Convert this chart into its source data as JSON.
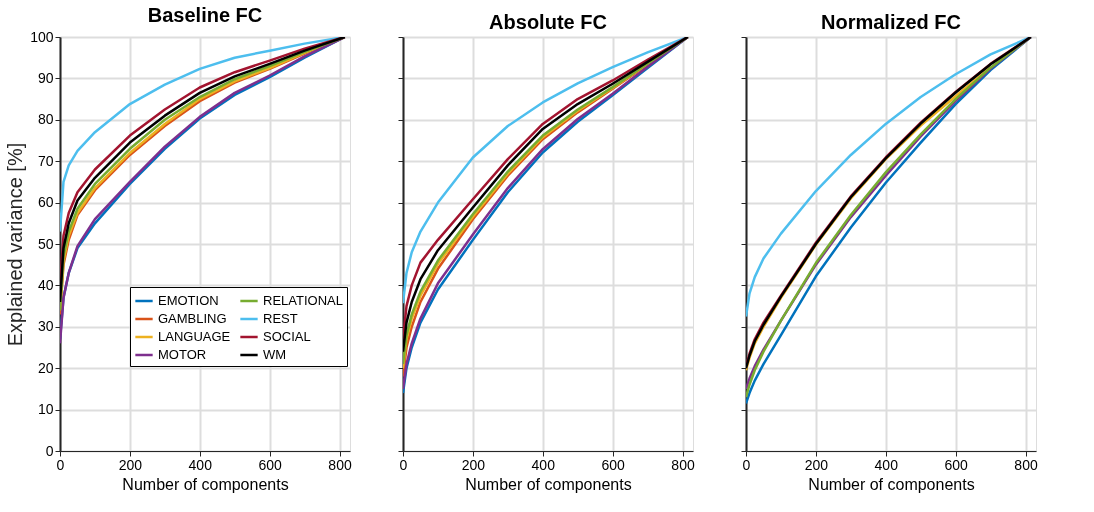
{
  "chart_data": [
    {
      "type": "line",
      "title": "Baseline FC",
      "xlabel": "Number of components",
      "ylabel": "Explained variance [%]",
      "x": [
        0,
        10,
        25,
        50,
        100,
        200,
        300,
        400,
        500,
        600,
        700,
        815
      ],
      "xlim": [
        0,
        830
      ],
      "xticks": [
        0,
        200,
        400,
        600,
        800
      ],
      "ylim": [
        0,
        100
      ],
      "yticks": [
        0,
        10,
        20,
        30,
        40,
        50,
        60,
        70,
        80,
        90,
        100
      ],
      "grid": true,
      "legend": "bottom right",
      "line_style": "solid",
      "series": [
        {
          "name": "EMOTION",
          "color": "#0072bd",
          "values": [
            27,
            37,
            43,
            49,
            55,
            64.5,
            73,
            80.3,
            86,
            90.3,
            95,
            100
          ]
        },
        {
          "name": "GAMBLING",
          "color": "#d95319",
          "values": [
            33,
            45,
            51,
            57,
            63,
            71.5,
            78.5,
            84.5,
            89,
            92.3,
            96,
            100
          ]
        },
        {
          "name": "LANGUAGE",
          "color": "#edb120",
          "values": [
            34,
            46,
            52,
            57.5,
            63.5,
            72,
            79,
            85,
            89.3,
            92.5,
            96.2,
            100
          ]
        },
        {
          "name": "MOTOR",
          "color": "#7e2f8e",
          "values": [
            26,
            37,
            43,
            49.5,
            56,
            65,
            73.5,
            80.7,
            86.5,
            90.7,
            95.3,
            100
          ]
        },
        {
          "name": "RELATIONAL",
          "color": "#77ac30",
          "values": [
            34,
            47,
            53,
            58.5,
            64.5,
            73,
            80,
            85.5,
            89.8,
            93,
            96.4,
            100
          ]
        },
        {
          "name": "REST",
          "color": "#4dbeee",
          "values": [
            53,
            65,
            69,
            72.5,
            77,
            83.8,
            88.5,
            92.3,
            95,
            96.7,
            98.4,
            100
          ]
        },
        {
          "name": "SOCIAL",
          "color": "#a2142f",
          "values": [
            40,
            52,
            57.5,
            62.5,
            68,
            76.2,
            82.5,
            87.8,
            91.5,
            94.3,
            97.2,
            100
          ]
        },
        {
          "name": "WM",
          "color": "#000000",
          "values": [
            36,
            49,
            55,
            60.5,
            66,
            74.5,
            81,
            86.5,
            90.5,
            93.5,
            96.7,
            100
          ]
        }
      ]
    },
    {
      "type": "line",
      "title": "Absolute FC",
      "xlabel": "Number of components",
      "x": [
        0,
        10,
        25,
        50,
        100,
        200,
        300,
        400,
        500,
        600,
        700,
        815
      ],
      "xlim": [
        0,
        830
      ],
      "xticks": [
        0,
        200,
        400,
        600,
        800
      ],
      "ylim": [
        0,
        100
      ],
      "yticks": [
        0,
        10,
        20,
        30,
        40,
        50,
        60,
        70,
        80,
        90,
        100
      ],
      "tick_labels": "x",
      "grid": true,
      "line_style": "solid",
      "series": [
        {
          "color": "#0072bd",
          "values": [
            14,
            20,
            25,
            31,
            39,
            51,
            62.5,
            72.1,
            79.5,
            85.9,
            92.5,
            100
          ]
        },
        {
          "color": "#d95319",
          "values": [
            18,
            25,
            30,
            36,
            44,
            56,
            66.5,
            75.3,
            81.8,
            87.5,
            93.3,
            100
          ]
        },
        {
          "color": "#edb120",
          "values": [
            20,
            27,
            32,
            37.5,
            45.2,
            56.6,
            67,
            75.8,
            82.2,
            87.7,
            93.5,
            100
          ]
        },
        {
          "color": "#7e2f8e",
          "values": [
            15,
            21,
            26,
            32,
            40.5,
            52.3,
            63.5,
            72.9,
            80.2,
            86.3,
            92.8,
            100
          ]
        },
        {
          "color": "#77ac30",
          "values": [
            21,
            28,
            33,
            38.5,
            46,
            57.2,
            67.5,
            76.2,
            82.5,
            87.9,
            93.6,
            100
          ]
        },
        {
          "color": "#4dbeee",
          "values": [
            35.7,
            43,
            48,
            53,
            60,
            70.9,
            78.5,
            84.2,
            88.8,
            92.7,
            96.3,
            100
          ]
        },
        {
          "color": "#a2142f",
          "values": [
            27,
            35,
            40,
            45.5,
            51,
            60.8,
            70.5,
            79,
            85,
            89.5,
            94.5,
            100
          ]
        },
        {
          "color": "#000000",
          "values": [
            24,
            31,
            36,
            41.5,
            48.5,
            58.8,
            69,
            77.8,
            83.8,
            88.7,
            94,
            100
          ]
        }
      ]
    },
    {
      "type": "line",
      "title": "Normalized FC",
      "xlabel": "Number of components",
      "x": [
        0,
        10,
        25,
        50,
        100,
        200,
        300,
        400,
        500,
        600,
        700,
        815
      ],
      "xlim": [
        0,
        830
      ],
      "xticks": [
        0,
        200,
        400,
        600,
        800
      ],
      "ylim": [
        0,
        100
      ],
      "yticks": [
        0,
        10,
        20,
        30,
        40,
        50,
        60,
        70,
        80,
        90,
        100
      ],
      "tick_labels": "x",
      "grid": true,
      "line_style": "solid",
      "series": [
        {
          "color": "#0072bd",
          "values": [
            11.5,
            14,
            17,
            21,
            28,
            42.2,
            54,
            64.8,
            74.5,
            83.8,
            92,
            100
          ]
        },
        {
          "color": "#d95319",
          "values": [
            null,
            null,
            null,
            null,
            null,
            null,
            null,
            null,
            null,
            null,
            null,
            null
          ]
        },
        {
          "color": "#edb120",
          "values": [
            19.5,
            22.5,
            26,
            30,
            37,
            49.8,
            61,
            70.5,
            78.6,
            85.7,
            92.7,
            null
          ]
        },
        {
          "color": "#7e2f8e",
          "values": [
            15,
            17.5,
            20.5,
            24.5,
            31.5,
            45,
            56.5,
            66.5,
            76,
            84.6,
            92.4,
            100
          ]
        },
        {
          "color": "#77ac30",
          "values": [
            13,
            16,
            19.5,
            24,
            31.5,
            45.4,
            57,
            67.3,
            76.5,
            85,
            92.6,
            100
          ]
        },
        {
          "color": "#4dbeee",
          "values": [
            32.5,
            38,
            42,
            46.5,
            52.5,
            62.8,
            71.5,
            79,
            85.5,
            91,
            95.8,
            100
          ]
        },
        {
          "color": "#a2142f",
          "values": [
            20.4,
            23.5,
            27,
            31,
            37.5,
            50.3,
            61.5,
            70.9,
            79.3,
            86.7,
            93.5,
            100
          ]
        },
        {
          "color": "#000000",
          "values": [
            20,
            23,
            26.5,
            30.5,
            37.3,
            50,
            61.3,
            70.7,
            79.1,
            86.6,
            93.4,
            100
          ]
        }
      ]
    }
  ]
}
